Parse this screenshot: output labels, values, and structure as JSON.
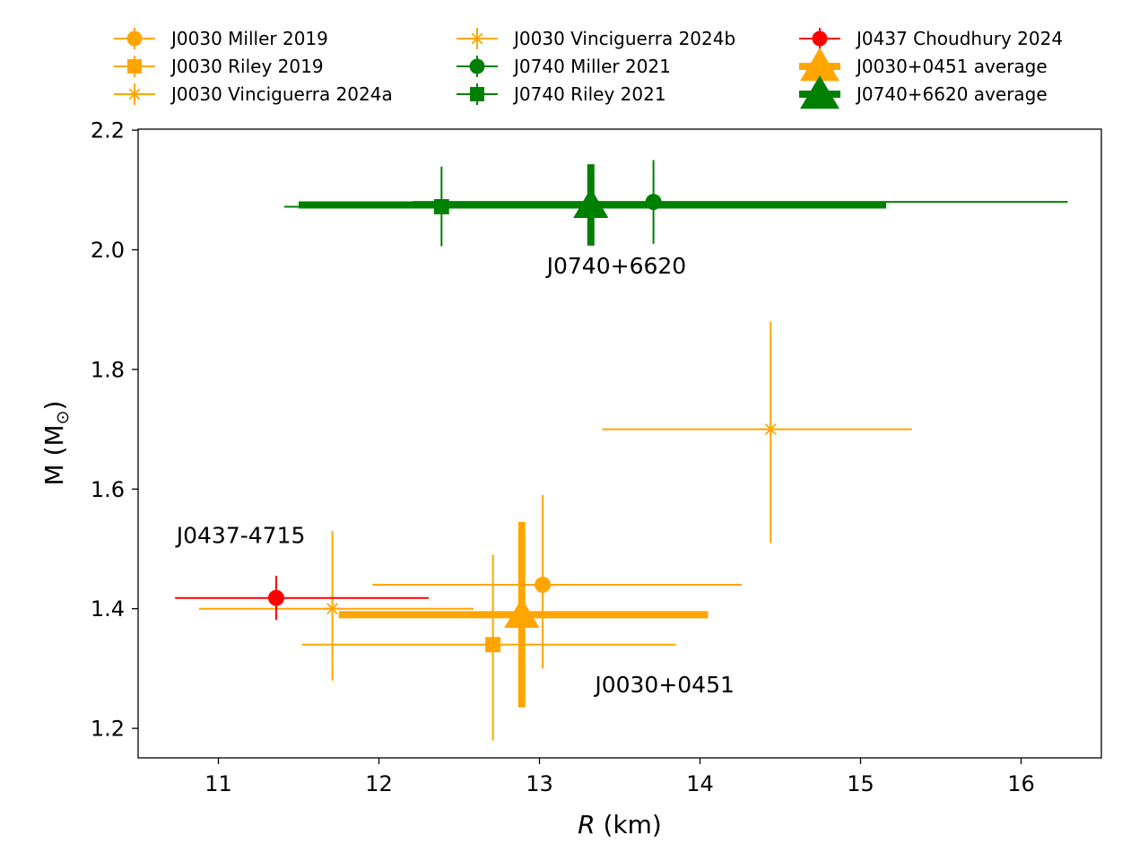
{
  "chart_data": {
    "type": "scatter",
    "xlabel_var": "R",
    "xlabel_unit": " (km)",
    "ylabel_main": "M (M",
    "ylabel_sub": "⊙",
    "ylabel_close": ")",
    "xlim": [
      10.5,
      16.5
    ],
    "ylim": [
      1.15,
      2.2
    ],
    "xticks": [
      11,
      12,
      13,
      14,
      15,
      16
    ],
    "yticks": [
      1.2,
      1.4,
      1.6,
      1.8,
      2.0,
      2.2
    ],
    "grid": false,
    "legend_position": "top",
    "colors": {
      "J0030": "#ffa500",
      "J0740": "#008000",
      "J0437": "#ff0000"
    },
    "series": [
      {
        "name": "J0030 Miller 2019",
        "color": "#ffa500",
        "marker": "circle",
        "style": "thin",
        "x": 13.02,
        "y": 1.44,
        "x_err": [
          1.06,
          1.24
        ],
        "y_err": [
          0.14,
          0.15
        ]
      },
      {
        "name": "J0030 Riley 2019",
        "color": "#ffa500",
        "marker": "square",
        "style": "thin",
        "x": 12.71,
        "y": 1.34,
        "x_err": [
          1.19,
          1.14
        ],
        "y_err": [
          0.16,
          0.15
        ]
      },
      {
        "name": "J0030 Vinciguerra 2024a",
        "color": "#ffa500",
        "marker": "x-star",
        "style": "thin",
        "x": 11.71,
        "y": 1.4,
        "x_err": [
          0.83,
          0.88
        ],
        "y_err": [
          0.12,
          0.13
        ]
      },
      {
        "name": "J0030 Vinciguerra 2024b",
        "color": "#ffa500",
        "marker": "x-star",
        "style": "thin",
        "x": 14.44,
        "y": 1.7,
        "x_err": [
          1.05,
          0.88
        ],
        "y_err": [
          0.19,
          0.18
        ]
      },
      {
        "name": "J0740 Miller 2021",
        "color": "#008000",
        "marker": "circle",
        "style": "thin",
        "x": 13.71,
        "y": 2.08,
        "x_err": [
          1.5,
          2.58
        ],
        "y_err": [
          0.07,
          0.07
        ]
      },
      {
        "name": "J0740 Riley 2021",
        "color": "#008000",
        "marker": "square",
        "style": "thin",
        "x": 12.39,
        "y": 2.072,
        "x_err": [
          0.98,
          1.3
        ],
        "y_err": [
          0.066,
          0.067
        ]
      },
      {
        "name": "J0437 Choudhury 2024",
        "color": "#ff0000",
        "marker": "circle",
        "style": "thin",
        "x": 11.36,
        "y": 1.418,
        "x_err": [
          0.63,
          0.95
        ],
        "y_err": [
          0.037,
          0.037
        ]
      },
      {
        "name": "J0030+0451 average",
        "color": "#ffa500",
        "marker": "triangle",
        "style": "thick",
        "x": 12.89,
        "y": 1.39,
        "x_err": [
          1.14,
          1.16
        ],
        "y_err": [
          0.155,
          0.155
        ]
      },
      {
        "name": "J0740+6620 average",
        "color": "#008000",
        "marker": "triangle",
        "style": "thick",
        "x": 13.32,
        "y": 2.075,
        "x_err": [
          1.82,
          1.84
        ],
        "y_err": [
          0.068,
          0.068
        ]
      }
    ],
    "annotations": [
      {
        "text": "J0740+6620",
        "x": 13.48,
        "y": 1.96
      },
      {
        "text": "J0437-4715",
        "x": 11.14,
        "y": 1.51
      },
      {
        "text": "J0030+0451",
        "x": 13.78,
        "y": 1.26
      }
    ]
  }
}
